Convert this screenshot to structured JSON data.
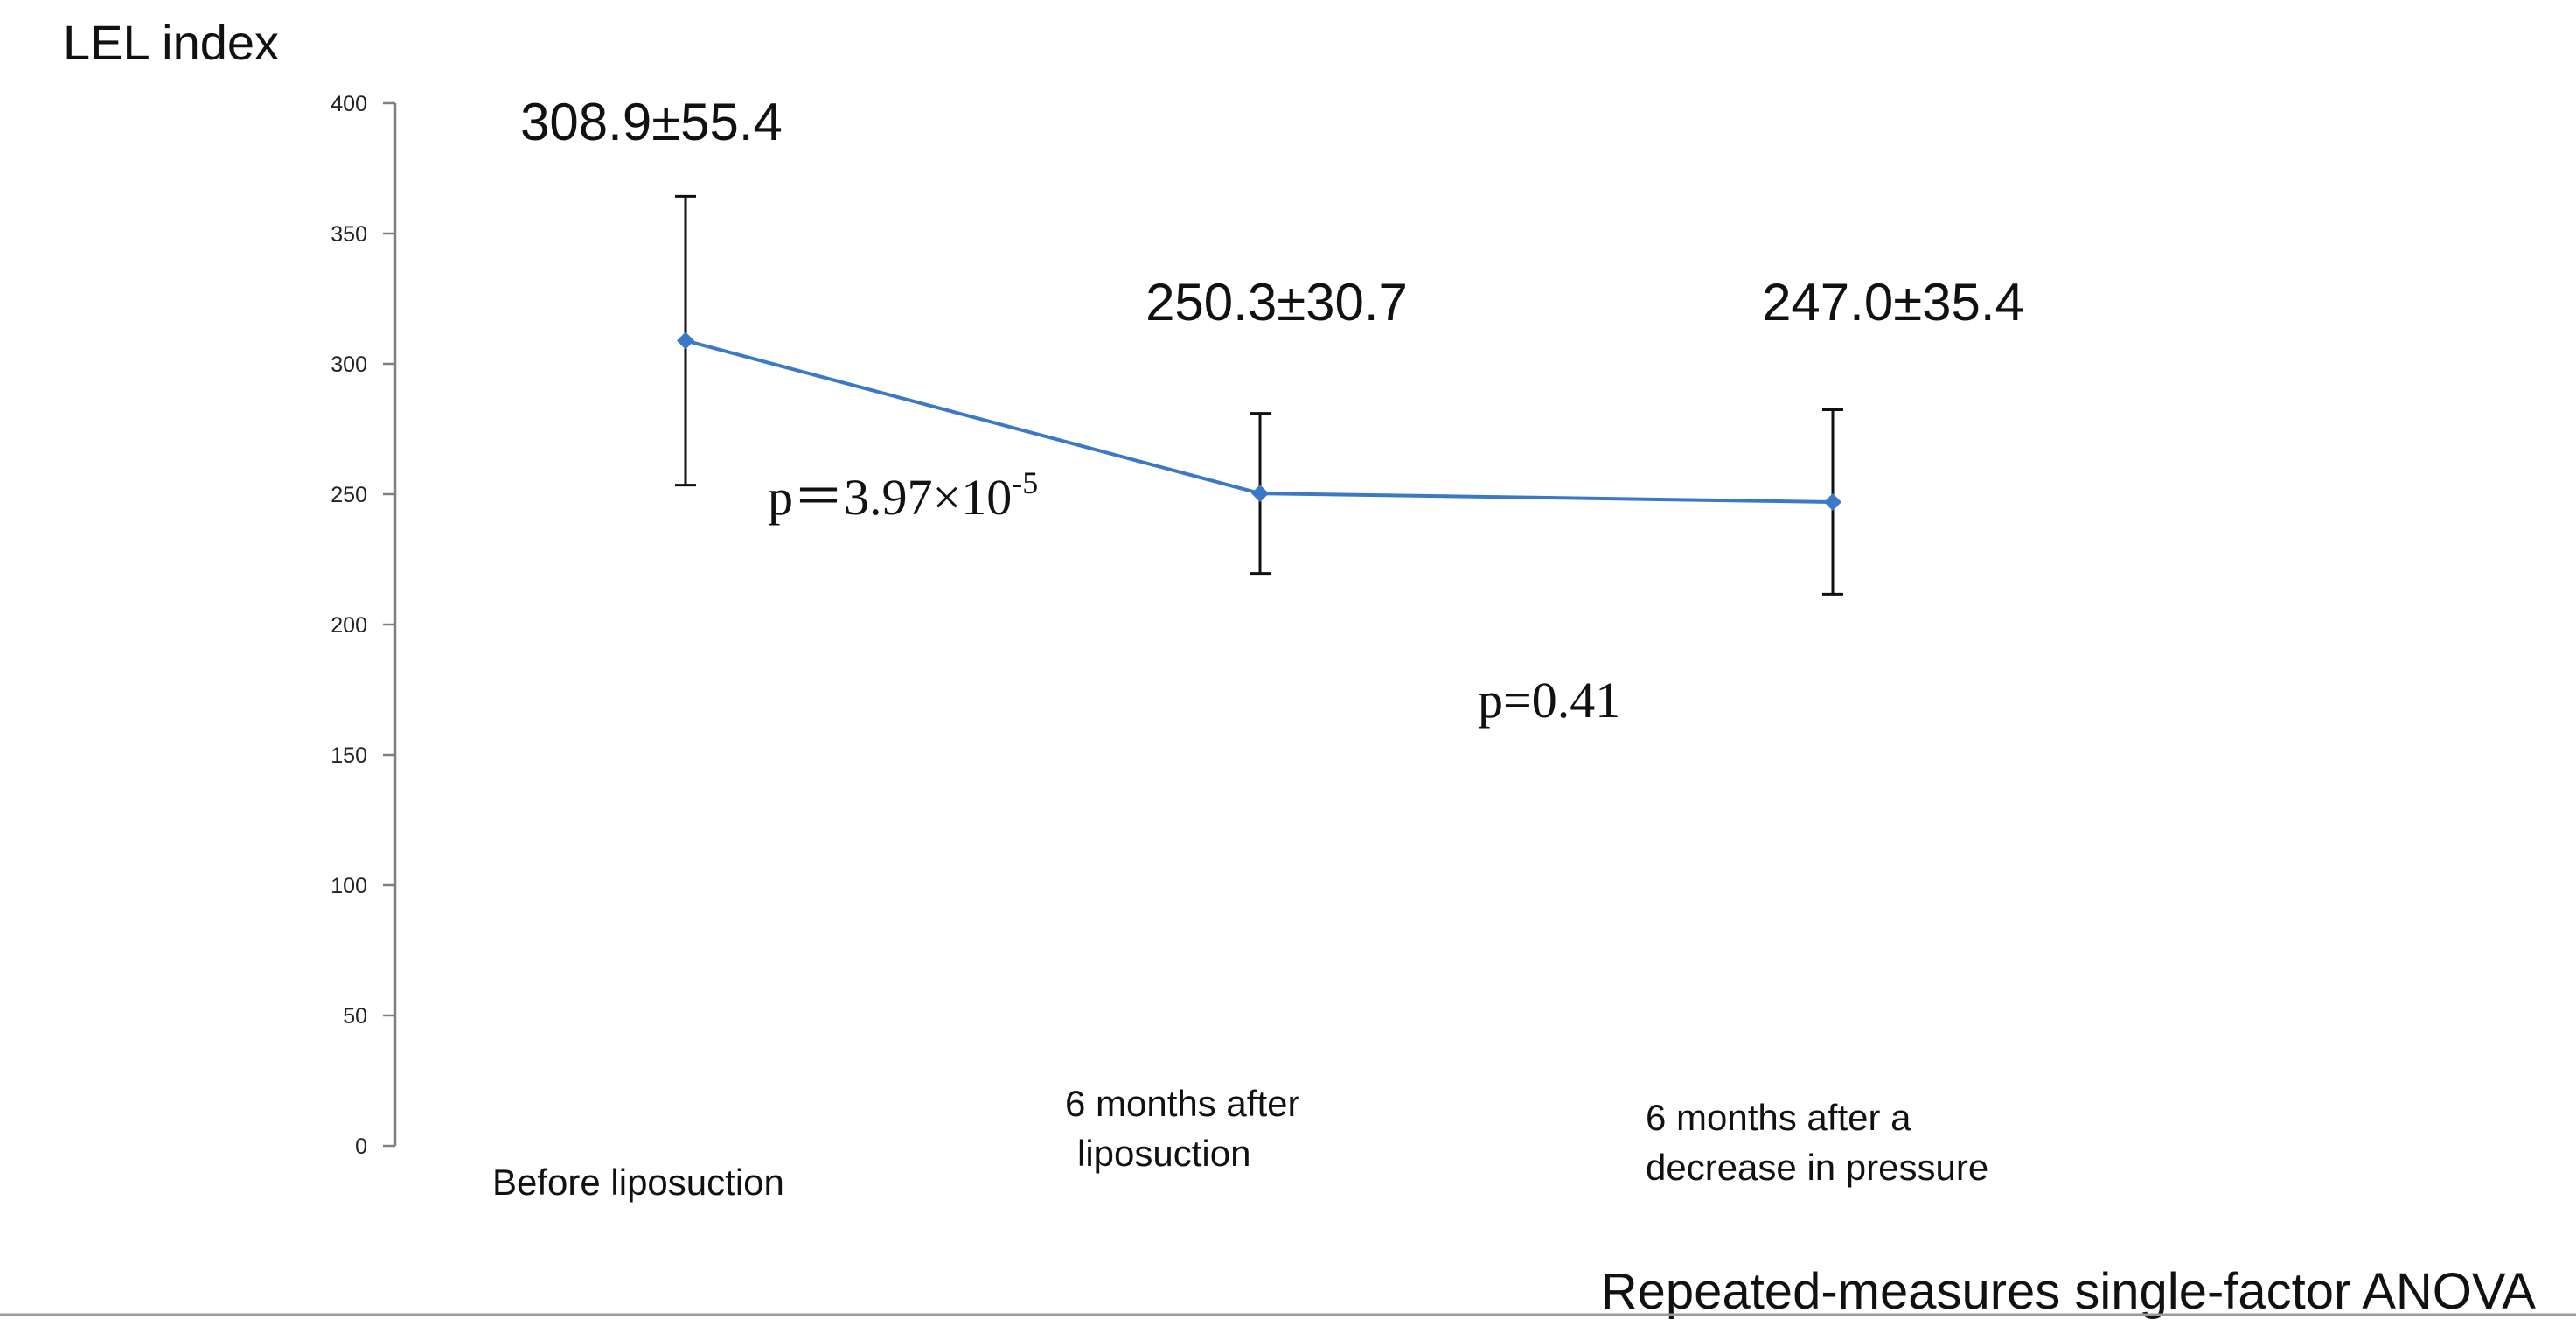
{
  "chart_data": {
    "type": "line",
    "ylabel": "LEL index",
    "ylim": [
      0,
      400
    ],
    "yticks": [
      "0",
      "50",
      "100",
      "150",
      "200",
      "250",
      "300",
      "350",
      "400"
    ],
    "categories": [
      [
        "Before liposuction"
      ],
      [
        "6 months after",
        "liposuction"
      ],
      [
        "6 months after a",
        "decrease in pressure"
      ]
    ],
    "values": [
      308.9,
      250.3,
      247.0
    ],
    "errors": [
      55.4,
      30.7,
      35.4
    ],
    "value_labels": [
      "308.9±55.4",
      "250.3±30.7",
      "247.0±35.4"
    ],
    "series_color": "#3a78c8",
    "grid": false,
    "p_values": [
      {
        "prefix": "p＝3.97×10",
        "superscript": "-5"
      },
      {
        "prefix": "p=0.41",
        "superscript": ""
      }
    ],
    "footnote": "Repeated-measures single-factor ANOVA"
  }
}
